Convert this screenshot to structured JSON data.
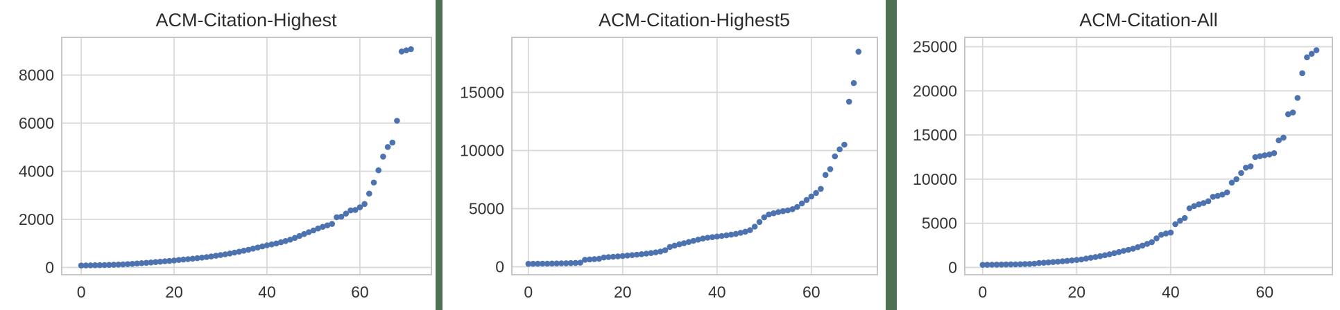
{
  "page": {
    "background": "#ffffff",
    "divider_color": "#4d7152",
    "grid_color": "#d9d9d9",
    "frame_color": "#c6c6c6",
    "title_color": "#2b2b2b",
    "tick_color": "#333333"
  },
  "chart_data": [
    {
      "type": "scatter",
      "title": "ACM-Citation-Highest",
      "xlabel": "",
      "ylabel": "",
      "legend": null,
      "grid": true,
      "dot_color": "#4c72b0",
      "x_is_index": true,
      "x_ticks": [
        0,
        20,
        40,
        60
      ],
      "y_ticks": [
        0,
        2000,
        4000,
        6000,
        8000
      ],
      "xlim": [
        -4.2,
        75.4
      ],
      "ylim": [
        -302,
        9568
      ],
      "values": [
        80,
        84,
        88,
        92,
        96,
        100,
        106,
        112,
        120,
        128,
        138,
        150,
        163,
        178,
        193,
        208,
        224,
        240,
        256,
        272,
        292,
        310,
        328,
        346,
        365,
        386,
        408,
        432,
        458,
        486,
        516,
        548,
        582,
        618,
        656,
        696,
        738,
        782,
        828,
        874,
        920,
        958,
        1000,
        1048,
        1098,
        1158,
        1228,
        1308,
        1390,
        1468,
        1540,
        1620,
        1690,
        1750,
        1810,
        2090,
        2110,
        2240,
        2370,
        2390,
        2500,
        2640,
        3070,
        3530,
        4040,
        4610,
        5010,
        5190,
        6100,
        8980,
        9030,
        9080
      ]
    },
    {
      "type": "scatter",
      "title": "ACM-Citation-Highest5",
      "xlabel": "",
      "ylabel": "",
      "legend": null,
      "grid": true,
      "dot_color": "#4c72b0",
      "x_is_index": true,
      "x_ticks": [
        0,
        20,
        40,
        60
      ],
      "y_ticks": [
        0,
        5000,
        10000,
        15000
      ],
      "xlim": [
        -3.5,
        74.0
      ],
      "ylim": [
        -685,
        19732
      ],
      "values": [
        250,
        255,
        260,
        265,
        270,
        278,
        286,
        295,
        305,
        315,
        330,
        350,
        600,
        630,
        660,
        690,
        800,
        830,
        860,
        890,
        930,
        965,
        1000,
        1040,
        1080,
        1130,
        1180,
        1240,
        1310,
        1420,
        1700,
        1820,
        1930,
        2030,
        2130,
        2230,
        2330,
        2430,
        2500,
        2550,
        2600,
        2650,
        2700,
        2760,
        2830,
        2920,
        3020,
        3150,
        3450,
        3850,
        4250,
        4500,
        4600,
        4700,
        4780,
        4850,
        4950,
        5150,
        5450,
        5750,
        6050,
        6350,
        6700,
        7900,
        8400,
        9500,
        10100,
        10500,
        14200,
        15800,
        18500
      ]
    },
    {
      "type": "scatter",
      "title": "ACM-Citation-All",
      "xlabel": "",
      "ylabel": "",
      "legend": null,
      "grid": true,
      "dot_color": "#4c72b0",
      "x_is_index": true,
      "x_ticks": [
        0,
        20,
        40,
        60
      ],
      "y_ticks": [
        0,
        5000,
        10000,
        15000,
        20000,
        25000
      ],
      "xlim": [
        -3.8,
        74.4
      ],
      "ylim": [
        -823,
        26058
      ],
      "values": [
        300,
        305,
        310,
        318,
        326,
        334,
        342,
        352,
        365,
        380,
        400,
        430,
        500,
        535,
        570,
        610,
        650,
        700,
        750,
        800,
        850,
        900,
        1000,
        1090,
        1180,
        1280,
        1390,
        1500,
        1620,
        1750,
        1880,
        2000,
        2120,
        2300,
        2480,
        2670,
        2870,
        3300,
        3700,
        3850,
        3950,
        4900,
        5300,
        5600,
        6700,
        6950,
        7150,
        7300,
        7500,
        8000,
        8100,
        8250,
        8500,
        9600,
        10000,
        10700,
        11300,
        11450,
        12500,
        12600,
        12700,
        12800,
        12950,
        14400,
        14700,
        17350,
        17550,
        19200,
        22000,
        23800,
        24200,
        24600
      ]
    }
  ]
}
